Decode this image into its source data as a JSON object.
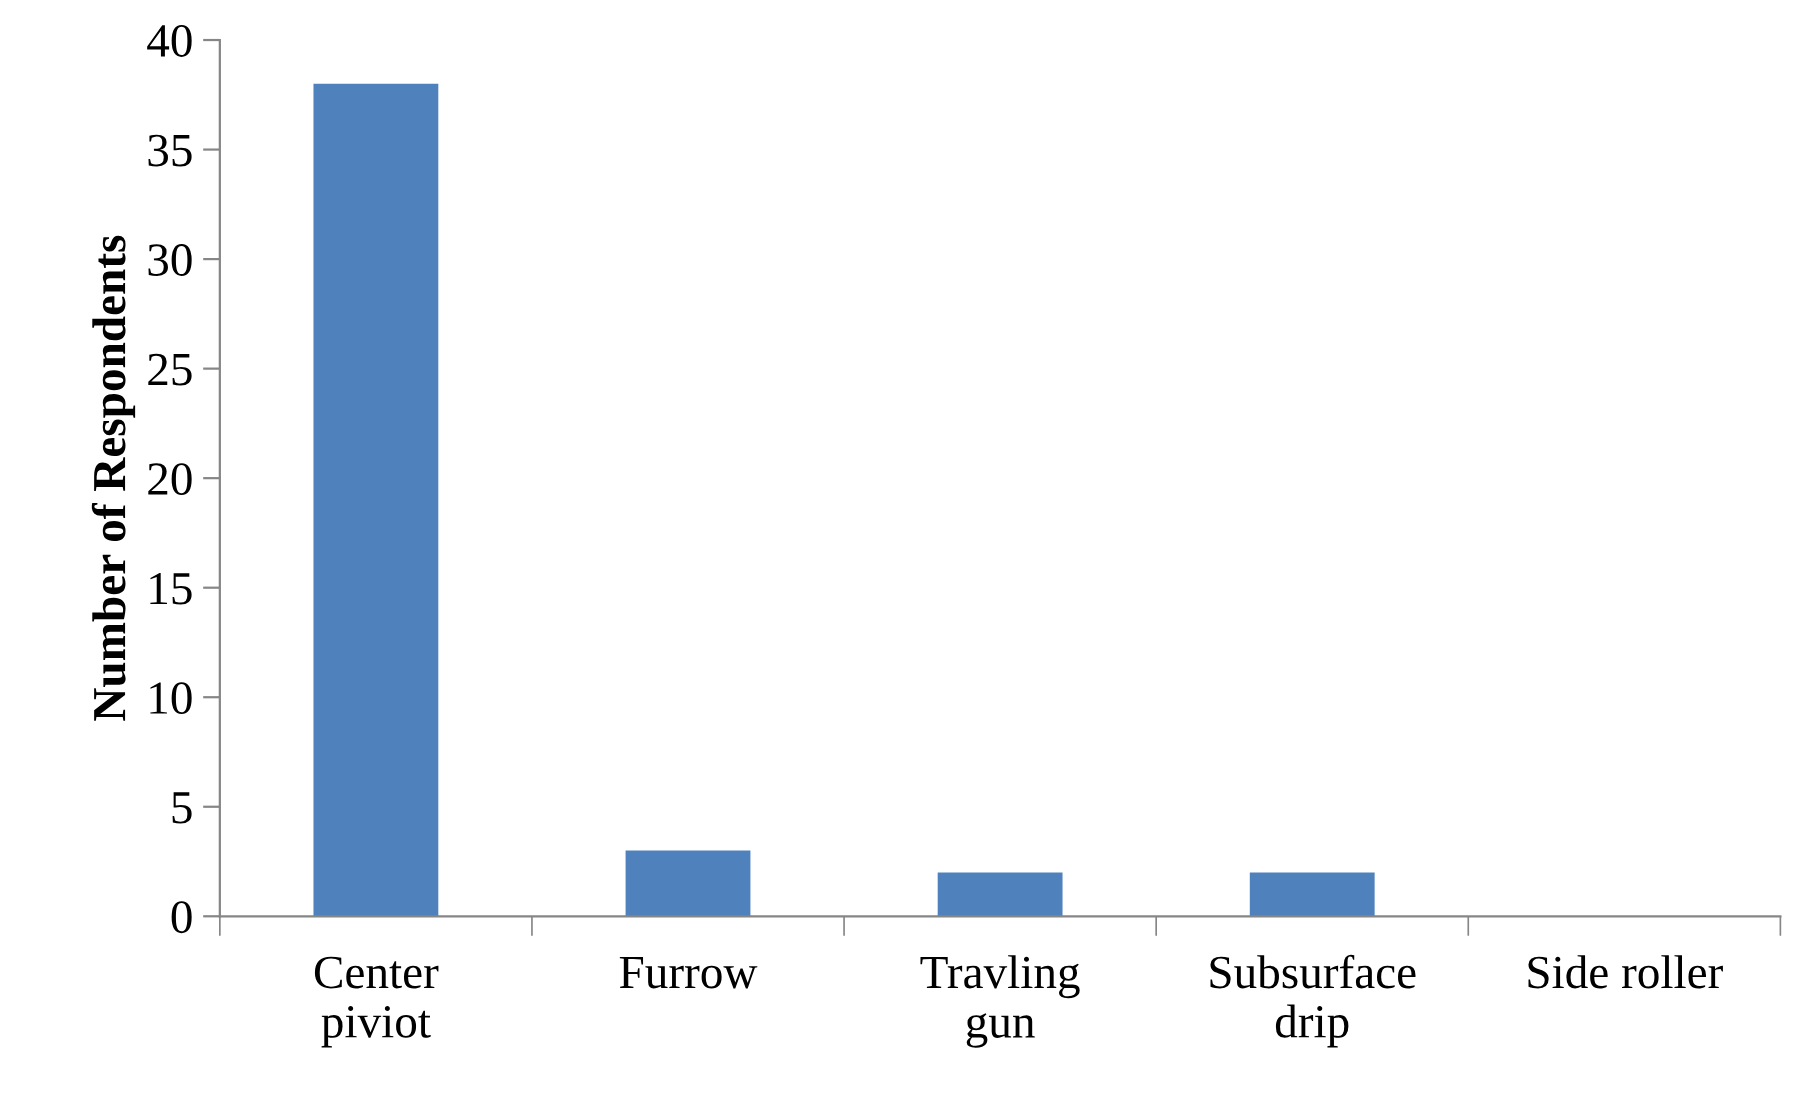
{
  "chart_data": {
    "type": "bar",
    "ylabel": "Number of Respondents",
    "categories": [
      "Center\npiviot",
      "Furrow",
      "Travling\ngun",
      "Subsurface\ndrip",
      "Side roller"
    ],
    "values": [
      38,
      3,
      2,
      2,
      0
    ],
    "color": "#4f81bd",
    "ylim": [
      0,
      40
    ],
    "yticks": [
      0,
      5,
      10,
      15,
      20,
      25,
      30,
      35,
      40
    ],
    "grid": false,
    "legend": false
  }
}
